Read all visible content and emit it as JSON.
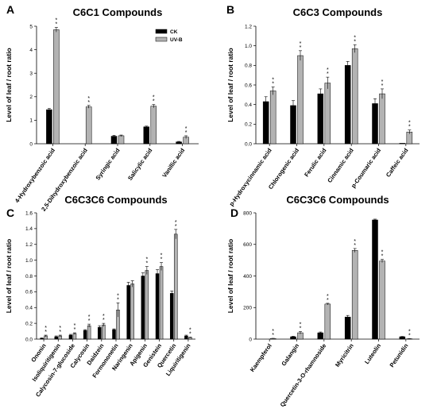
{
  "chart_data": [
    {
      "type": "bar",
      "panel": "A",
      "title": "C6C1 Compounds",
      "ylabel": "Level of leaf / root ratio",
      "ylim": [
        0,
        5
      ],
      "yticks": [
        0,
        1,
        2,
        3,
        4,
        5
      ],
      "categories": [
        "4-Hydroxybenzoic acid",
        "2,5-Dihydroxybenzoic acid",
        "Syringic acid",
        "Salicylic acid",
        "Vanillic acid"
      ],
      "series": [
        {
          "name": "CK",
          "color": "#000000",
          "values": [
            1.45,
            0.0,
            0.32,
            0.72,
            0.08
          ],
          "errors": [
            0.05,
            0.0,
            0.04,
            0.03,
            0.02
          ]
        },
        {
          "name": "UV-B",
          "color": "#b3b3b3",
          "values": [
            4.85,
            1.57,
            0.34,
            1.6,
            0.28
          ],
          "errors": [
            0.1,
            0.06,
            0.03,
            0.07,
            0.06
          ]
        }
      ],
      "significant": [
        true,
        true,
        false,
        true,
        true
      ],
      "legend": "top-right"
    },
    {
      "type": "bar",
      "panel": "B",
      "title": "C6C3 Compounds",
      "ylabel": "Level of leaf / root ratio",
      "ylim": [
        0,
        1.2
      ],
      "yticks": [
        0.0,
        0.2,
        0.4,
        0.6,
        0.8,
        1.0,
        1.2
      ],
      "categories": [
        "p-Hydroxycinnamic acid",
        "Chlorogenic acid",
        "Ferulic acid",
        "Cinnamic acid",
        "p-Coumaric acid",
        "Caffeic acid"
      ],
      "series": [
        {
          "name": "CK",
          "color": "#000000",
          "values": [
            0.43,
            0.39,
            0.51,
            0.8,
            0.41,
            0.005
          ],
          "errors": [
            0.05,
            0.05,
            0.05,
            0.04,
            0.05,
            0.0
          ]
        },
        {
          "name": "UV-B",
          "color": "#b3b3b3",
          "values": [
            0.54,
            0.9,
            0.62,
            0.97,
            0.51,
            0.12
          ],
          "errors": [
            0.04,
            0.05,
            0.06,
            0.04,
            0.05,
            0.02
          ]
        }
      ],
      "significant": [
        true,
        true,
        true,
        true,
        true,
        true
      ]
    },
    {
      "type": "bar",
      "panel": "C",
      "title": "C6C3C6 Compounds",
      "ylabel": "Level of leaf / root ratio",
      "ylim": [
        0,
        1.6
      ],
      "yticks": [
        0.0,
        0.2,
        0.4,
        0.6,
        0.8,
        1.0,
        1.2,
        1.4,
        1.6
      ],
      "categories": [
        "Ononin",
        "Isoliquiritigenin",
        "Calycosin-7-glucoside",
        "Calycosin",
        "Daidzein",
        "Formononetin",
        "Naringenin",
        "Apigenin",
        "Genistein",
        "Quercetin",
        "Liquiritigenin"
      ],
      "series": [
        {
          "name": "CK",
          "color": "#000000",
          "values": [
            0.01,
            0.03,
            0.05,
            0.11,
            0.15,
            0.12,
            0.68,
            0.8,
            0.83,
            0.58,
            0.04
          ],
          "errors": [
            0.005,
            0.01,
            0.01,
            0.01,
            0.02,
            0.01,
            0.04,
            0.04,
            0.05,
            0.03,
            0.01
          ]
        },
        {
          "name": "UV-B",
          "color": "#b3b3b3",
          "values": [
            0.04,
            0.04,
            0.07,
            0.17,
            0.18,
            0.37,
            0.7,
            0.87,
            0.92,
            1.33,
            0.02
          ],
          "errors": [
            0.01,
            0.01,
            0.01,
            0.02,
            0.02,
            0.09,
            0.04,
            0.05,
            0.05,
            0.06,
            0.005
          ]
        }
      ],
      "significant": [
        true,
        true,
        true,
        true,
        true,
        true,
        false,
        true,
        true,
        true,
        true
      ]
    },
    {
      "type": "bar",
      "panel": "D",
      "title": "C6C3C6 Compounds",
      "ylabel": "Level of leaf / root ratio",
      "ylim": [
        0,
        800
      ],
      "yticks": [
        0,
        200,
        400,
        600,
        800
      ],
      "categories": [
        "Kaempferol",
        "Galangin",
        "Quercetin-3-O-rhamnoside",
        "Myricitrin",
        "Luteolin",
        "Petunidin"
      ],
      "series": [
        {
          "name": "CK",
          "color": "#000000",
          "values": [
            0,
            15,
            40,
            140,
            755,
            15
          ],
          "errors": [
            0,
            3,
            5,
            10,
            5,
            2
          ]
        },
        {
          "name": "UV-B",
          "color": "#b3b3b3",
          "values": [
            4,
            40,
            222,
            562,
            495,
            2
          ],
          "errors": [
            1,
            8,
            5,
            12,
            10,
            1
          ]
        }
      ],
      "significant": [
        true,
        true,
        true,
        true,
        true,
        true
      ]
    }
  ],
  "sig_marker": "*"
}
